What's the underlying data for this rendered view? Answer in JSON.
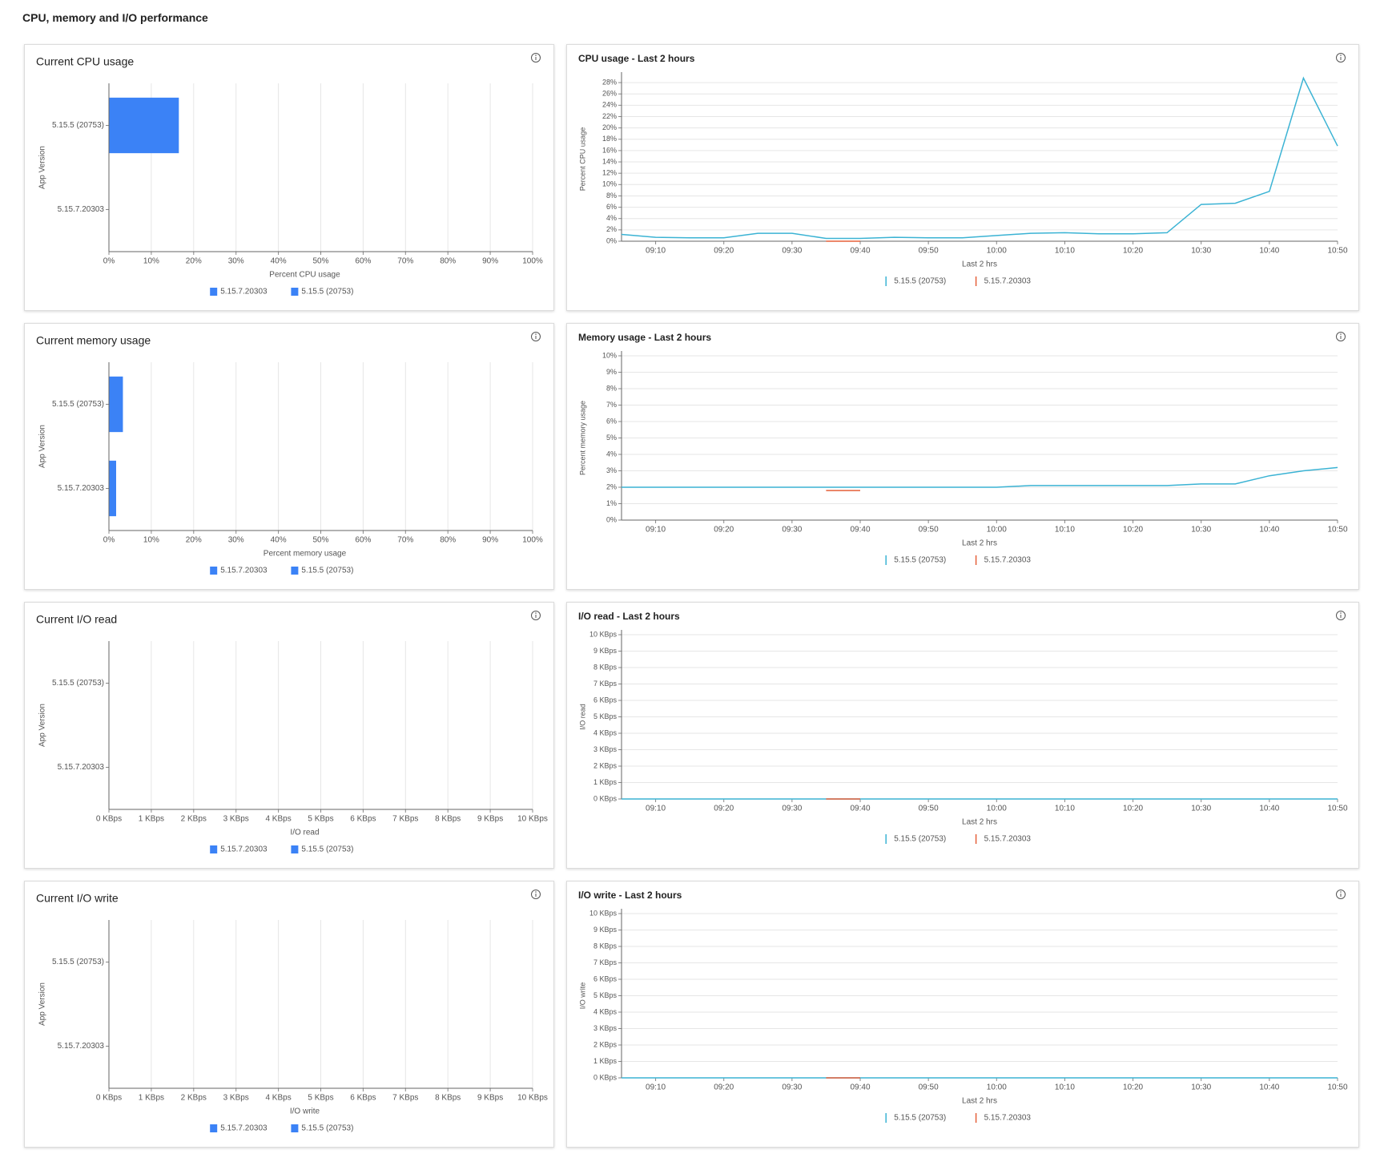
{
  "page": {
    "title": "CPU, memory and I/O performance"
  },
  "chart_data": [
    {
      "type": "bar",
      "orientation": "horizontal",
      "title": "Current CPU usage",
      "x_label": "Percent CPU usage",
      "y_label": "App Version",
      "categories": [
        "5.15.5 (20753)",
        "5.15.7.20303"
      ],
      "series": [
        {
          "name": "5.15.7.20303",
          "color": "#3b82f6",
          "values": [
            null,
            null
          ]
        },
        {
          "name": "5.15.5 (20753)",
          "color": "#3b82f6",
          "values": [
            16.5,
            null
          ]
        }
      ],
      "xlim": [
        0,
        100
      ],
      "xticks": [
        {
          "value": 0,
          "label": "0%"
        },
        {
          "value": 10,
          "label": "10%"
        },
        {
          "value": 20,
          "label": "20%"
        },
        {
          "value": 30,
          "label": "30%"
        },
        {
          "value": 40,
          "label": "40%"
        },
        {
          "value": 50,
          "label": "50%"
        },
        {
          "value": 60,
          "label": "60%"
        },
        {
          "value": 70,
          "label": "70%"
        },
        {
          "value": 80,
          "label": "80%"
        },
        {
          "value": 90,
          "label": "90%"
        },
        {
          "value": 100,
          "label": "100%"
        }
      ],
      "grid": true
    },
    {
      "type": "line",
      "title": "CPU usage - Last 2 hours",
      "x_label": "Last 2 hrs",
      "y_label": "Percent CPU usage",
      "x": [
        null,
        "09:10",
        null,
        "09:20",
        null,
        "09:30",
        null,
        "09:40",
        null,
        "09:50",
        null,
        "10:00",
        null,
        "10:10",
        null,
        "10:20",
        null,
        "10:30",
        null,
        "10:40",
        null,
        "10:50"
      ],
      "series": [
        {
          "name": "5.15.5 (20753)",
          "color": "#3bb3d4",
          "values": [
            1.2,
            0.7,
            0.6,
            0.6,
            1.4,
            1.4,
            0.5,
            0.5,
            0.7,
            0.6,
            0.6,
            1.0,
            1.4,
            1.5,
            1.3,
            1.3,
            1.5,
            6.5,
            6.7,
            8.8,
            28.8,
            16.8
          ]
        },
        {
          "name": "5.15.7.20303",
          "color": "#e5603a",
          "values": [
            null,
            null,
            null,
            null,
            null,
            null,
            0,
            0,
            null,
            null,
            null,
            null,
            null,
            null,
            null,
            null,
            null,
            null,
            null,
            null,
            null,
            null
          ]
        }
      ],
      "ylim": [
        0,
        29
      ],
      "yticks": [
        {
          "value": 0,
          "label": "0%"
        },
        {
          "value": 2,
          "label": "2%"
        },
        {
          "value": 4,
          "label": "4%"
        },
        {
          "value": 6,
          "label": "6%"
        },
        {
          "value": 8,
          "label": "8%"
        },
        {
          "value": 10,
          "label": "10%"
        },
        {
          "value": 12,
          "label": "12%"
        },
        {
          "value": 14,
          "label": "14%"
        },
        {
          "value": 16,
          "label": "16%"
        },
        {
          "value": 18,
          "label": "18%"
        },
        {
          "value": 20,
          "label": "20%"
        },
        {
          "value": 22,
          "label": "22%"
        },
        {
          "value": 24,
          "label": "24%"
        },
        {
          "value": 26,
          "label": "26%"
        },
        {
          "value": 28,
          "label": "28%"
        }
      ],
      "grid": true
    },
    {
      "type": "bar",
      "orientation": "horizontal",
      "title": "Current memory usage",
      "x_label": "Percent memory usage",
      "y_label": "App Version",
      "categories": [
        "5.15.5 (20753)",
        "5.15.7.20303"
      ],
      "series": [
        {
          "name": "5.15.7.20303",
          "color": "#3b82f6",
          "values": [
            null,
            1.7
          ]
        },
        {
          "name": "5.15.5 (20753)",
          "color": "#3b82f6",
          "values": [
            3.3,
            null
          ]
        }
      ],
      "xlim": [
        0,
        100
      ],
      "xticks": [
        {
          "value": 0,
          "label": "0%"
        },
        {
          "value": 10,
          "label": "10%"
        },
        {
          "value": 20,
          "label": "20%"
        },
        {
          "value": 30,
          "label": "30%"
        },
        {
          "value": 40,
          "label": "40%"
        },
        {
          "value": 50,
          "label": "50%"
        },
        {
          "value": 60,
          "label": "60%"
        },
        {
          "value": 70,
          "label": "70%"
        },
        {
          "value": 80,
          "label": "80%"
        },
        {
          "value": 90,
          "label": "90%"
        },
        {
          "value": 100,
          "label": "100%"
        }
      ],
      "grid": true
    },
    {
      "type": "line",
      "title": "Memory usage - Last 2 hours",
      "x_label": "Last 2 hrs",
      "y_label": "Percent memory usage",
      "x": [
        null,
        "09:10",
        null,
        "09:20",
        null,
        "09:30",
        null,
        "09:40",
        null,
        "09:50",
        null,
        "10:00",
        null,
        "10:10",
        null,
        "10:20",
        null,
        "10:30",
        null,
        "10:40",
        null,
        "10:50"
      ],
      "series": [
        {
          "name": "5.15.5 (20753)",
          "color": "#3bb3d4",
          "values": [
            2,
            2,
            2,
            2,
            2,
            2,
            2,
            2,
            2,
            2,
            2,
            2,
            2.1,
            2.1,
            2.1,
            2.1,
            2.1,
            2.2,
            2.2,
            2.7,
            3.0,
            3.2
          ]
        },
        {
          "name": "5.15.7.20303",
          "color": "#e5603a",
          "values": [
            null,
            null,
            null,
            null,
            null,
            null,
            1.8,
            1.8,
            null,
            null,
            null,
            null,
            null,
            null,
            null,
            null,
            null,
            null,
            null,
            null,
            null,
            null
          ]
        }
      ],
      "ylim": [
        0,
        10
      ],
      "yticks": [
        {
          "value": 0,
          "label": "0%"
        },
        {
          "value": 1,
          "label": "1%"
        },
        {
          "value": 2,
          "label": "2%"
        },
        {
          "value": 3,
          "label": "3%"
        },
        {
          "value": 4,
          "label": "4%"
        },
        {
          "value": 5,
          "label": "5%"
        },
        {
          "value": 6,
          "label": "6%"
        },
        {
          "value": 7,
          "label": "7%"
        },
        {
          "value": 8,
          "label": "8%"
        },
        {
          "value": 9,
          "label": "9%"
        },
        {
          "value": 10,
          "label": "10%"
        }
      ],
      "grid": true
    },
    {
      "type": "bar",
      "orientation": "horizontal",
      "title": "Current I/O read",
      "x_label": "I/O read",
      "y_label": "App Version",
      "categories": [
        "5.15.5 (20753)",
        "5.15.7.20303"
      ],
      "series": [
        {
          "name": "5.15.7.20303",
          "color": "#3b82f6",
          "values": [
            null,
            0
          ]
        },
        {
          "name": "5.15.5 (20753)",
          "color": "#3b82f6",
          "values": [
            0,
            null
          ]
        }
      ],
      "xlim": [
        0,
        10
      ],
      "xticks": [
        {
          "value": 0,
          "label": "0 KBps"
        },
        {
          "value": 1,
          "label": "1 KBps"
        },
        {
          "value": 2,
          "label": "2 KBps"
        },
        {
          "value": 3,
          "label": "3 KBps"
        },
        {
          "value": 4,
          "label": "4 KBps"
        },
        {
          "value": 5,
          "label": "5 KBps"
        },
        {
          "value": 6,
          "label": "6 KBps"
        },
        {
          "value": 7,
          "label": "7 KBps"
        },
        {
          "value": 8,
          "label": "8 KBps"
        },
        {
          "value": 9,
          "label": "9 KBps"
        },
        {
          "value": 10,
          "label": "10 KBps"
        }
      ],
      "grid": true
    },
    {
      "type": "line",
      "title": "I/O read - Last 2 hours",
      "x_label": "Last 2 hrs",
      "y_label": "I/O read",
      "x": [
        null,
        "09:10",
        null,
        "09:20",
        null,
        "09:30",
        null,
        "09:40",
        null,
        "09:50",
        null,
        "10:00",
        null,
        "10:10",
        null,
        "10:20",
        null,
        "10:30",
        null,
        "10:40",
        null,
        "10:50"
      ],
      "series": [
        {
          "name": "5.15.5 (20753)",
          "color": "#3bb3d4",
          "values": [
            0,
            0,
            0,
            0,
            0,
            0,
            0,
            0,
            0,
            0,
            0,
            0,
            0,
            0,
            0,
            0,
            0,
            0,
            0,
            0,
            0,
            0
          ]
        },
        {
          "name": "5.15.7.20303",
          "color": "#e5603a",
          "values": [
            null,
            null,
            null,
            null,
            null,
            null,
            0,
            0,
            null,
            null,
            null,
            null,
            null,
            null,
            null,
            null,
            null,
            null,
            null,
            null,
            null,
            null
          ]
        }
      ],
      "ylim": [
        0,
        10
      ],
      "yticks": [
        {
          "value": 0,
          "label": "0 KBps"
        },
        {
          "value": 1,
          "label": "1 KBps"
        },
        {
          "value": 2,
          "label": "2 KBps"
        },
        {
          "value": 3,
          "label": "3 KBps"
        },
        {
          "value": 4,
          "label": "4 KBps"
        },
        {
          "value": 5,
          "label": "5 KBps"
        },
        {
          "value": 6,
          "label": "6 KBps"
        },
        {
          "value": 7,
          "label": "7 KBps"
        },
        {
          "value": 8,
          "label": "8 KBps"
        },
        {
          "value": 9,
          "label": "9 KBps"
        },
        {
          "value": 10,
          "label": "10 KBps"
        }
      ],
      "grid": true
    },
    {
      "type": "bar",
      "orientation": "horizontal",
      "title": "Current I/O write",
      "x_label": "I/O write",
      "y_label": "App Version",
      "categories": [
        "5.15.5 (20753)",
        "5.15.7.20303"
      ],
      "series": [
        {
          "name": "5.15.7.20303",
          "color": "#3b82f6",
          "values": [
            null,
            0
          ]
        },
        {
          "name": "5.15.5 (20753)",
          "color": "#3b82f6",
          "values": [
            0,
            null
          ]
        }
      ],
      "xlim": [
        0,
        10
      ],
      "xticks": [
        {
          "value": 0,
          "label": "0 KBps"
        },
        {
          "value": 1,
          "label": "1 KBps"
        },
        {
          "value": 2,
          "label": "2 KBps"
        },
        {
          "value": 3,
          "label": "3 KBps"
        },
        {
          "value": 4,
          "label": "4 KBps"
        },
        {
          "value": 5,
          "label": "5 KBps"
        },
        {
          "value": 6,
          "label": "6 KBps"
        },
        {
          "value": 7,
          "label": "7 KBps"
        },
        {
          "value": 8,
          "label": "8 KBps"
        },
        {
          "value": 9,
          "label": "9 KBps"
        },
        {
          "value": 10,
          "label": "10 KBps"
        }
      ],
      "grid": true
    },
    {
      "type": "line",
      "title": "I/O write - Last 2 hours",
      "x_label": "Last 2 hrs",
      "y_label": "I/O write",
      "x": [
        null,
        "09:10",
        null,
        "09:20",
        null,
        "09:30",
        null,
        "09:40",
        null,
        "09:50",
        null,
        "10:00",
        null,
        "10:10",
        null,
        "10:20",
        null,
        "10:30",
        null,
        "10:40",
        null,
        "10:50"
      ],
      "series": [
        {
          "name": "5.15.5 (20753)",
          "color": "#3bb3d4",
          "values": [
            0,
            0,
            0,
            0,
            0,
            0,
            0,
            0,
            0,
            0,
            0,
            0,
            0,
            0,
            0,
            0,
            0,
            0,
            0,
            0,
            0,
            0
          ]
        },
        {
          "name": "5.15.7.20303",
          "color": "#e5603a",
          "values": [
            null,
            null,
            null,
            null,
            null,
            null,
            0,
            0,
            null,
            null,
            null,
            null,
            null,
            null,
            null,
            null,
            null,
            null,
            null,
            null,
            null,
            null
          ]
        }
      ],
      "ylim": [
        0,
        10
      ],
      "yticks": [
        {
          "value": 0,
          "label": "0 KBps"
        },
        {
          "value": 1,
          "label": "1 KBps"
        },
        {
          "value": 2,
          "label": "2 KBps"
        },
        {
          "value": 3,
          "label": "3 KBps"
        },
        {
          "value": 4,
          "label": "4 KBps"
        },
        {
          "value": 5,
          "label": "5 KBps"
        },
        {
          "value": 6,
          "label": "6 KBps"
        },
        {
          "value": 7,
          "label": "7 KBps"
        },
        {
          "value": 8,
          "label": "8 KBps"
        },
        {
          "value": 9,
          "label": "9 KBps"
        },
        {
          "value": 10,
          "label": "10 KBps"
        }
      ],
      "grid": true
    }
  ]
}
